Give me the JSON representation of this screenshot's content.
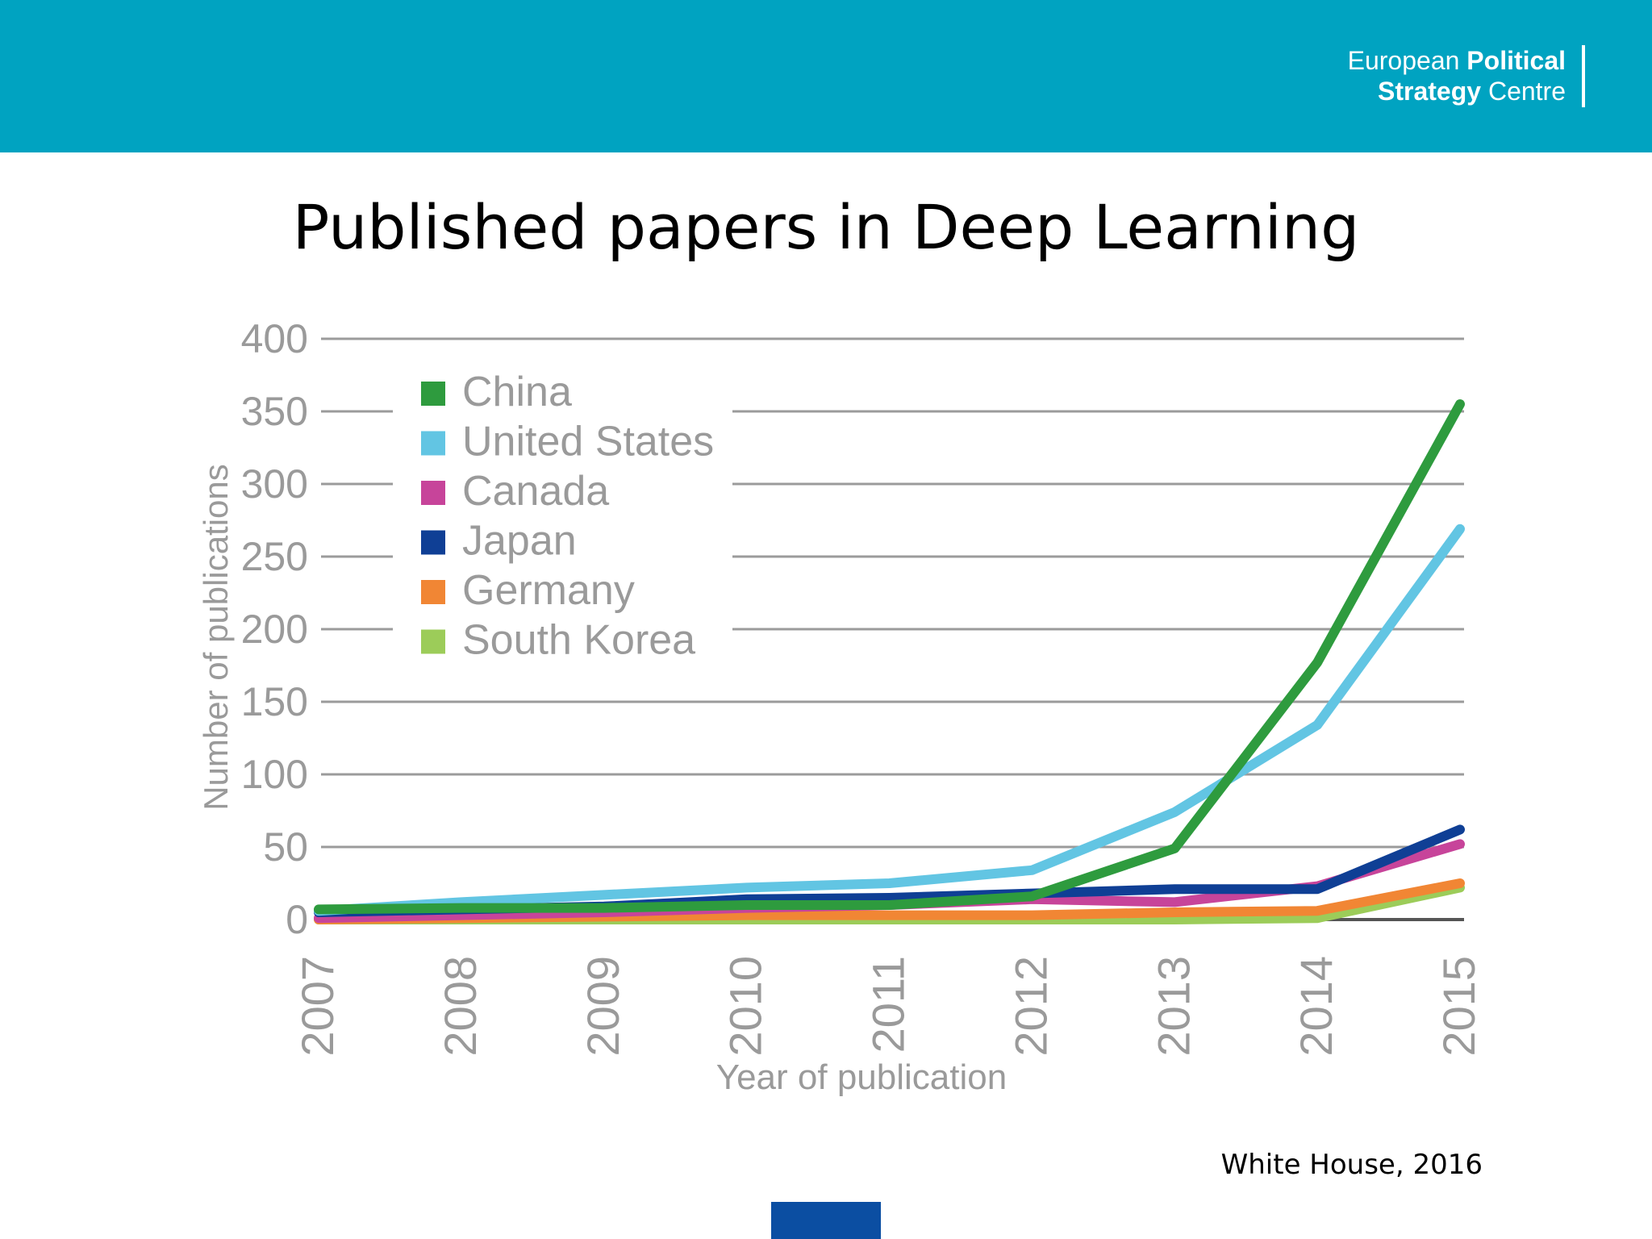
{
  "header": {
    "brand_line1_regular": "European",
    "brand_line1_bold": "Political",
    "brand_line2_bold": "Strategy",
    "brand_line2_regular": "Centre"
  },
  "source": "White House, 2016",
  "colors": {
    "header_bg": "#00a3c1",
    "China": "#2e9b3e",
    "United States": "#62c5e3",
    "Canada": "#c7449a",
    "Japan": "#0f3f95",
    "Germany": "#f18634",
    "South Korea": "#9ccc59"
  },
  "chart_data": {
    "type": "line",
    "title": "Published papers in Deep Learning",
    "xlabel": "Year of publication",
    "ylabel": "Number of publications",
    "x": [
      "2007",
      "2008",
      "2009",
      "2010",
      "2011",
      "2012",
      "2013",
      "2014",
      "2015"
    ],
    "yticks": [
      0,
      50,
      100,
      150,
      200,
      250,
      300,
      350,
      400
    ],
    "ylim": [
      0,
      400
    ],
    "grid": true,
    "legend_position": "top-left",
    "series": [
      {
        "name": "China",
        "values": [
          7,
          8,
          8,
          10,
          10,
          16,
          49,
          177,
          355
        ]
      },
      {
        "name": "United States",
        "values": [
          6,
          12,
          17,
          22,
          25,
          34,
          74,
          134,
          269
        ]
      },
      {
        "name": "Canada",
        "values": [
          1,
          3,
          5,
          8,
          10,
          14,
          12,
          23,
          52
        ]
      },
      {
        "name": "Japan",
        "values": [
          5,
          7,
          9,
          14,
          15,
          18,
          21,
          21,
          62
        ]
      },
      {
        "name": "Germany",
        "values": [
          0,
          1,
          2,
          3,
          3,
          3,
          5,
          6,
          25
        ]
      },
      {
        "name": "South Korea",
        "values": [
          0,
          0,
          0,
          0,
          0,
          0,
          0,
          1,
          22
        ]
      }
    ]
  }
}
